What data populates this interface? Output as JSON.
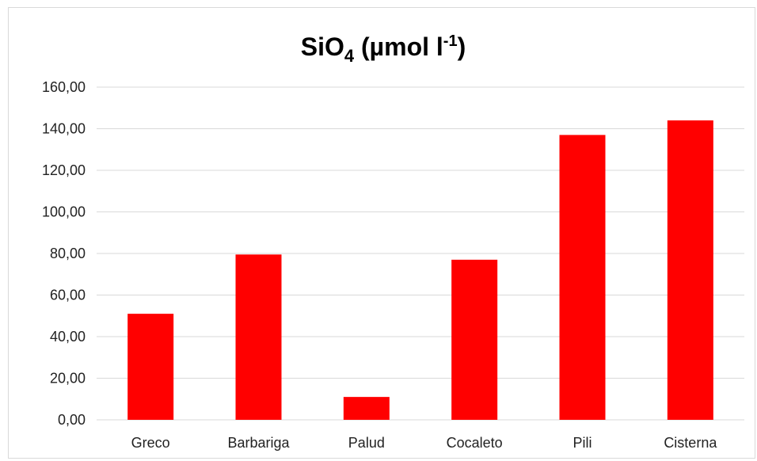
{
  "chart_data": {
    "type": "bar",
    "title": {
      "main": "SiO",
      "sub": "4",
      "unit_prefix": " (µmol l",
      "sup": "-1",
      "unit_suffix": ")"
    },
    "categories": [
      "Greco",
      "Barbariga",
      "Palud",
      "Cocaleto",
      "Pili",
      "Cisterna"
    ],
    "values": [
      51,
      79.5,
      11,
      77,
      137,
      144
    ],
    "ylim": [
      0,
      160
    ],
    "yticks": [
      "0,00",
      "20,00",
      "40,00",
      "60,00",
      "80,00",
      "100,00",
      "120,00",
      "140,00",
      "160,00"
    ],
    "ytick_values": [
      0,
      20,
      40,
      60,
      80,
      100,
      120,
      140,
      160
    ],
    "grid": true,
    "legend": "none",
    "bar_color": "#ff0000",
    "grid_color": "#d9d9d9"
  }
}
